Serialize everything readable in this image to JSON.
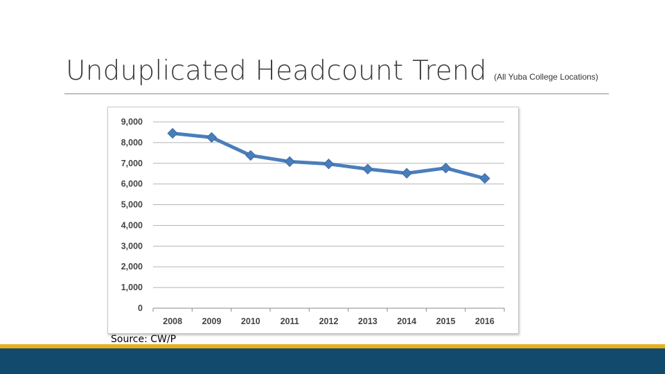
{
  "slide": {
    "title": "Unduplicated Headcount Trend",
    "subtitle": "(All Yuba College Locations)",
    "source": "Source: CW/P"
  },
  "colors": {
    "line": "#4a7ebb",
    "gold_band": "#e6b11c",
    "navy_band": "#124a6e"
  },
  "chart_data": {
    "type": "line",
    "categories": [
      "2008",
      "2009",
      "2010",
      "2011",
      "2012",
      "2013",
      "2014",
      "2015",
      "2016"
    ],
    "series": [
      {
        "values": [
          8450,
          8250,
          7380,
          7080,
          6970,
          6720,
          6520,
          6770,
          6270
        ]
      }
    ],
    "y_ticks": [
      "0",
      "1,000",
      "2,000",
      "3,000",
      "4,000",
      "5,000",
      "6,000",
      "7,000",
      "8,000",
      "9,000"
    ],
    "ylim": [
      0,
      9000
    ],
    "grid": true,
    "legend": "none",
    "marker": "diamond"
  }
}
